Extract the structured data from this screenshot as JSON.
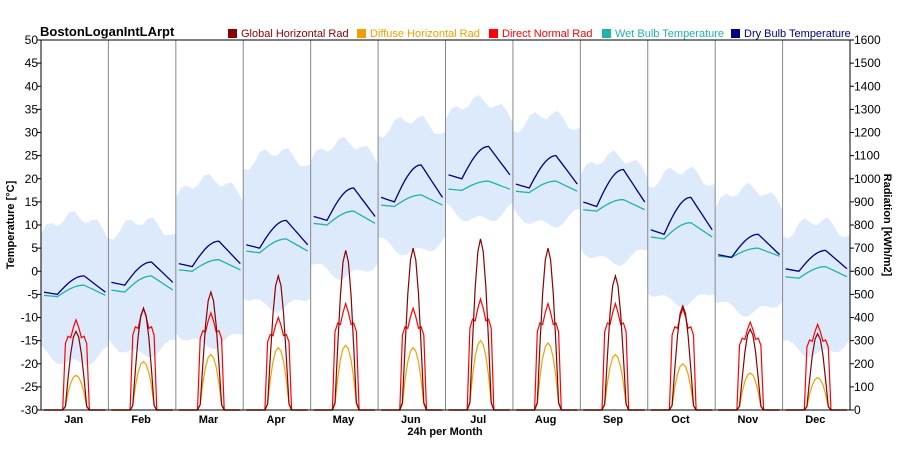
{
  "chart_data": {
    "type": "line",
    "title": "BostonLoganIntLArpt",
    "xlabel": "24h per Month",
    "ylabel_left": "Temperature [°C]",
    "ylabel_right": "Radiation [kWh/m2]",
    "ylim_left": [
      -30,
      50
    ],
    "ylim_right": [
      0,
      1600
    ],
    "yticks_left": [
      "-30",
      "-25",
      "-20",
      "-15",
      "-10",
      "-5",
      "0",
      "5",
      "10",
      "15",
      "20",
      "25",
      "30",
      "35",
      "40",
      "45",
      "50"
    ],
    "yticks_right": [
      "0",
      "100",
      "200",
      "300",
      "400",
      "500",
      "600",
      "700",
      "800",
      "900",
      "1000",
      "1100",
      "1200",
      "1300",
      "1400",
      "1500",
      "1600"
    ],
    "categories": [
      "Jan",
      "Feb",
      "Mar",
      "Apr",
      "May",
      "Jun",
      "Jul",
      "Aug",
      "Sep",
      "Oct",
      "Nov",
      "Dec"
    ],
    "legend_placement": "top-right",
    "legend": [
      {
        "label": "Global Horizontal Rad",
        "color": "#8b0000"
      },
      {
        "label": "Diffuse Horizontal Rad",
        "color": "#f0a000"
      },
      {
        "label": "Direct Normal Rad",
        "color": "#ff0000"
      },
      {
        "label": "Wet Bulb Temperature",
        "color": "#20b2aa"
      },
      {
        "label": "Dry Bulb Temperature",
        "color": "#000080"
      }
    ],
    "series": [
      {
        "name": "Dry Bulb Temperature",
        "axis": "left",
        "unit": "°C",
        "min": [
          -5,
          -3,
          1,
          5,
          11,
          15,
          20,
          18,
          14,
          8,
          3,
          0
        ],
        "max": [
          -1,
          2,
          6.5,
          11,
          18,
          23,
          27,
          25,
          22,
          16,
          8,
          4.5
        ]
      },
      {
        "name": "Wet Bulb Temperature",
        "axis": "left",
        "unit": "°C",
        "min": [
          -5.5,
          -4.5,
          0,
          4,
          10,
          14,
          17.5,
          17,
          13,
          7,
          3,
          -1.5
        ],
        "max": [
          -3,
          -1,
          2.5,
          7,
          13,
          16.5,
          19.5,
          19.5,
          15.5,
          10.5,
          5,
          1
        ]
      },
      {
        "name": "Global Horizontal Rad",
        "axis": "right",
        "unit": "kWh/m2",
        "peak": [
          340,
          440,
          510,
          580,
          690,
          700,
          740,
          700,
          580,
          450,
          350,
          330
        ]
      },
      {
        "name": "Diffuse Horizontal Rad",
        "axis": "right",
        "unit": "kWh/m2",
        "peak": [
          150,
          210,
          240,
          270,
          280,
          270,
          300,
          290,
          240,
          200,
          160,
          140
        ]
      },
      {
        "name": "Direct Normal Rad",
        "axis": "right",
        "unit": "kWh/m2",
        "peak": [
          390,
          440,
          420,
          400,
          460,
          440,
          480,
          460,
          460,
          440,
          380,
          370
        ]
      }
    ],
    "temperature_band": {
      "color": "#ddeafb",
      "low": [
        -20,
        -18,
        -16,
        -8,
        -1,
        4,
        11,
        10,
        2,
        -7,
        -9,
        -18
      ],
      "high": [
        12,
        11,
        20,
        26,
        28,
        33,
        37,
        34,
        25,
        22,
        18,
        11
      ]
    },
    "grid": true
  }
}
